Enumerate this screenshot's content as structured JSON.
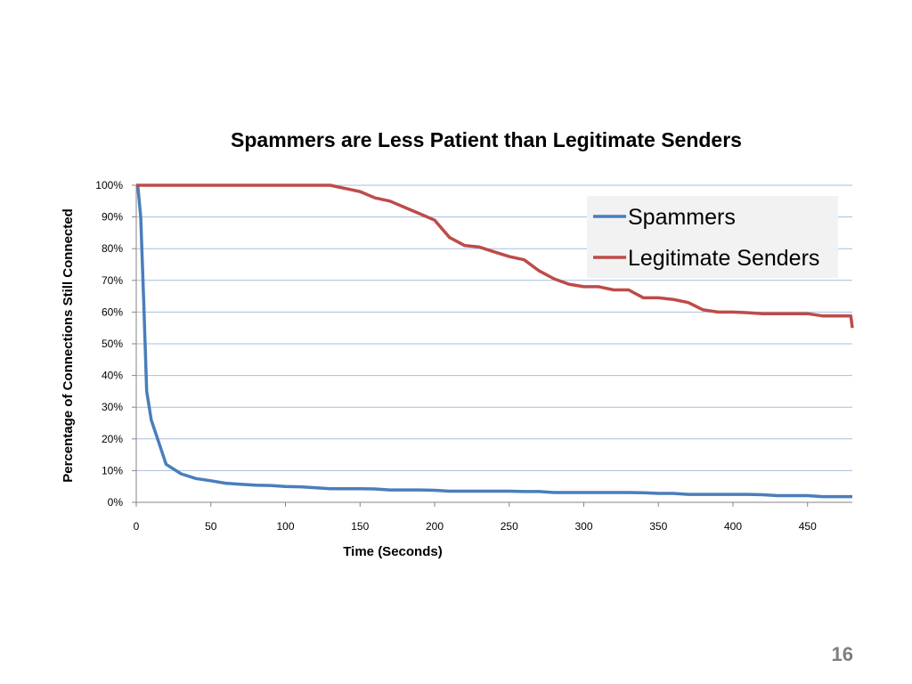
{
  "slide": {
    "page_number": "16"
  },
  "chart_data": {
    "type": "line",
    "title": "Spammers are Less Patient than Legitimate Senders",
    "xlabel": "Time (Seconds)",
    "ylabel": "Percentage of Connections Still Connected",
    "xlim": [
      0,
      480
    ],
    "ylim": [
      0,
      100
    ],
    "x_ticks": [
      0,
      50,
      100,
      150,
      200,
      250,
      300,
      350,
      400,
      450
    ],
    "y_ticks": [
      0,
      10,
      20,
      30,
      40,
      50,
      60,
      70,
      80,
      90,
      100
    ],
    "y_tick_labels": [
      "0%",
      "10%",
      "20%",
      "30%",
      "40%",
      "50%",
      "60%",
      "70%",
      "80%",
      "90%",
      "100%"
    ],
    "grid": "horizontal",
    "legend_position": "top-right",
    "series": [
      {
        "name": "Spammers",
        "color": "#4a7ebb",
        "x": [
          1,
          3,
          5,
          7,
          10,
          20,
          30,
          40,
          50,
          60,
          70,
          80,
          90,
          100,
          110,
          120,
          130,
          140,
          150,
          160,
          170,
          180,
          190,
          200,
          210,
          220,
          230,
          240,
          250,
          260,
          270,
          280,
          290,
          300,
          310,
          320,
          330,
          340,
          350,
          360,
          370,
          380,
          390,
          400,
          410,
          420,
          430,
          440,
          450,
          460,
          470,
          480
        ],
        "values": [
          100,
          90,
          63,
          35,
          26,
          12,
          9,
          7.5,
          6.8,
          6.0,
          5.7,
          5.4,
          5.3,
          5.0,
          4.9,
          4.6,
          4.3,
          4.3,
          4.3,
          4.2,
          3.9,
          3.9,
          3.9,
          3.8,
          3.5,
          3.5,
          3.5,
          3.5,
          3.5,
          3.4,
          3.4,
          3.1,
          3.1,
          3.1,
          3.1,
          3.1,
          3.1,
          3.0,
          2.8,
          2.8,
          2.5,
          2.5,
          2.5,
          2.5,
          2.5,
          2.4,
          2.1,
          2.1,
          2.1,
          1.8,
          1.8,
          1.8
        ]
      },
      {
        "name": "Legitimate Senders",
        "color": "#be4b48",
        "x": [
          0,
          10,
          50,
          100,
          120,
          130,
          140,
          150,
          160,
          170,
          180,
          190,
          200,
          210,
          220,
          230,
          240,
          250,
          260,
          270,
          280,
          290,
          300,
          310,
          320,
          330,
          340,
          350,
          360,
          370,
          380,
          390,
          400,
          410,
          420,
          430,
          440,
          450,
          460,
          470,
          479,
          480
        ],
        "values": [
          100,
          100,
          100,
          100,
          100,
          100,
          99,
          98,
          96,
          95,
          93,
          91,
          89,
          83.5,
          81,
          80.5,
          79,
          77.5,
          76.5,
          73,
          70.5,
          68.8,
          68,
          68,
          67,
          67,
          64.5,
          64.5,
          64,
          63,
          60.7,
          60,
          60,
          59.8,
          59.5,
          59.5,
          59.5,
          59.5,
          58.8,
          58.8,
          58.8,
          55
        ]
      }
    ]
  }
}
